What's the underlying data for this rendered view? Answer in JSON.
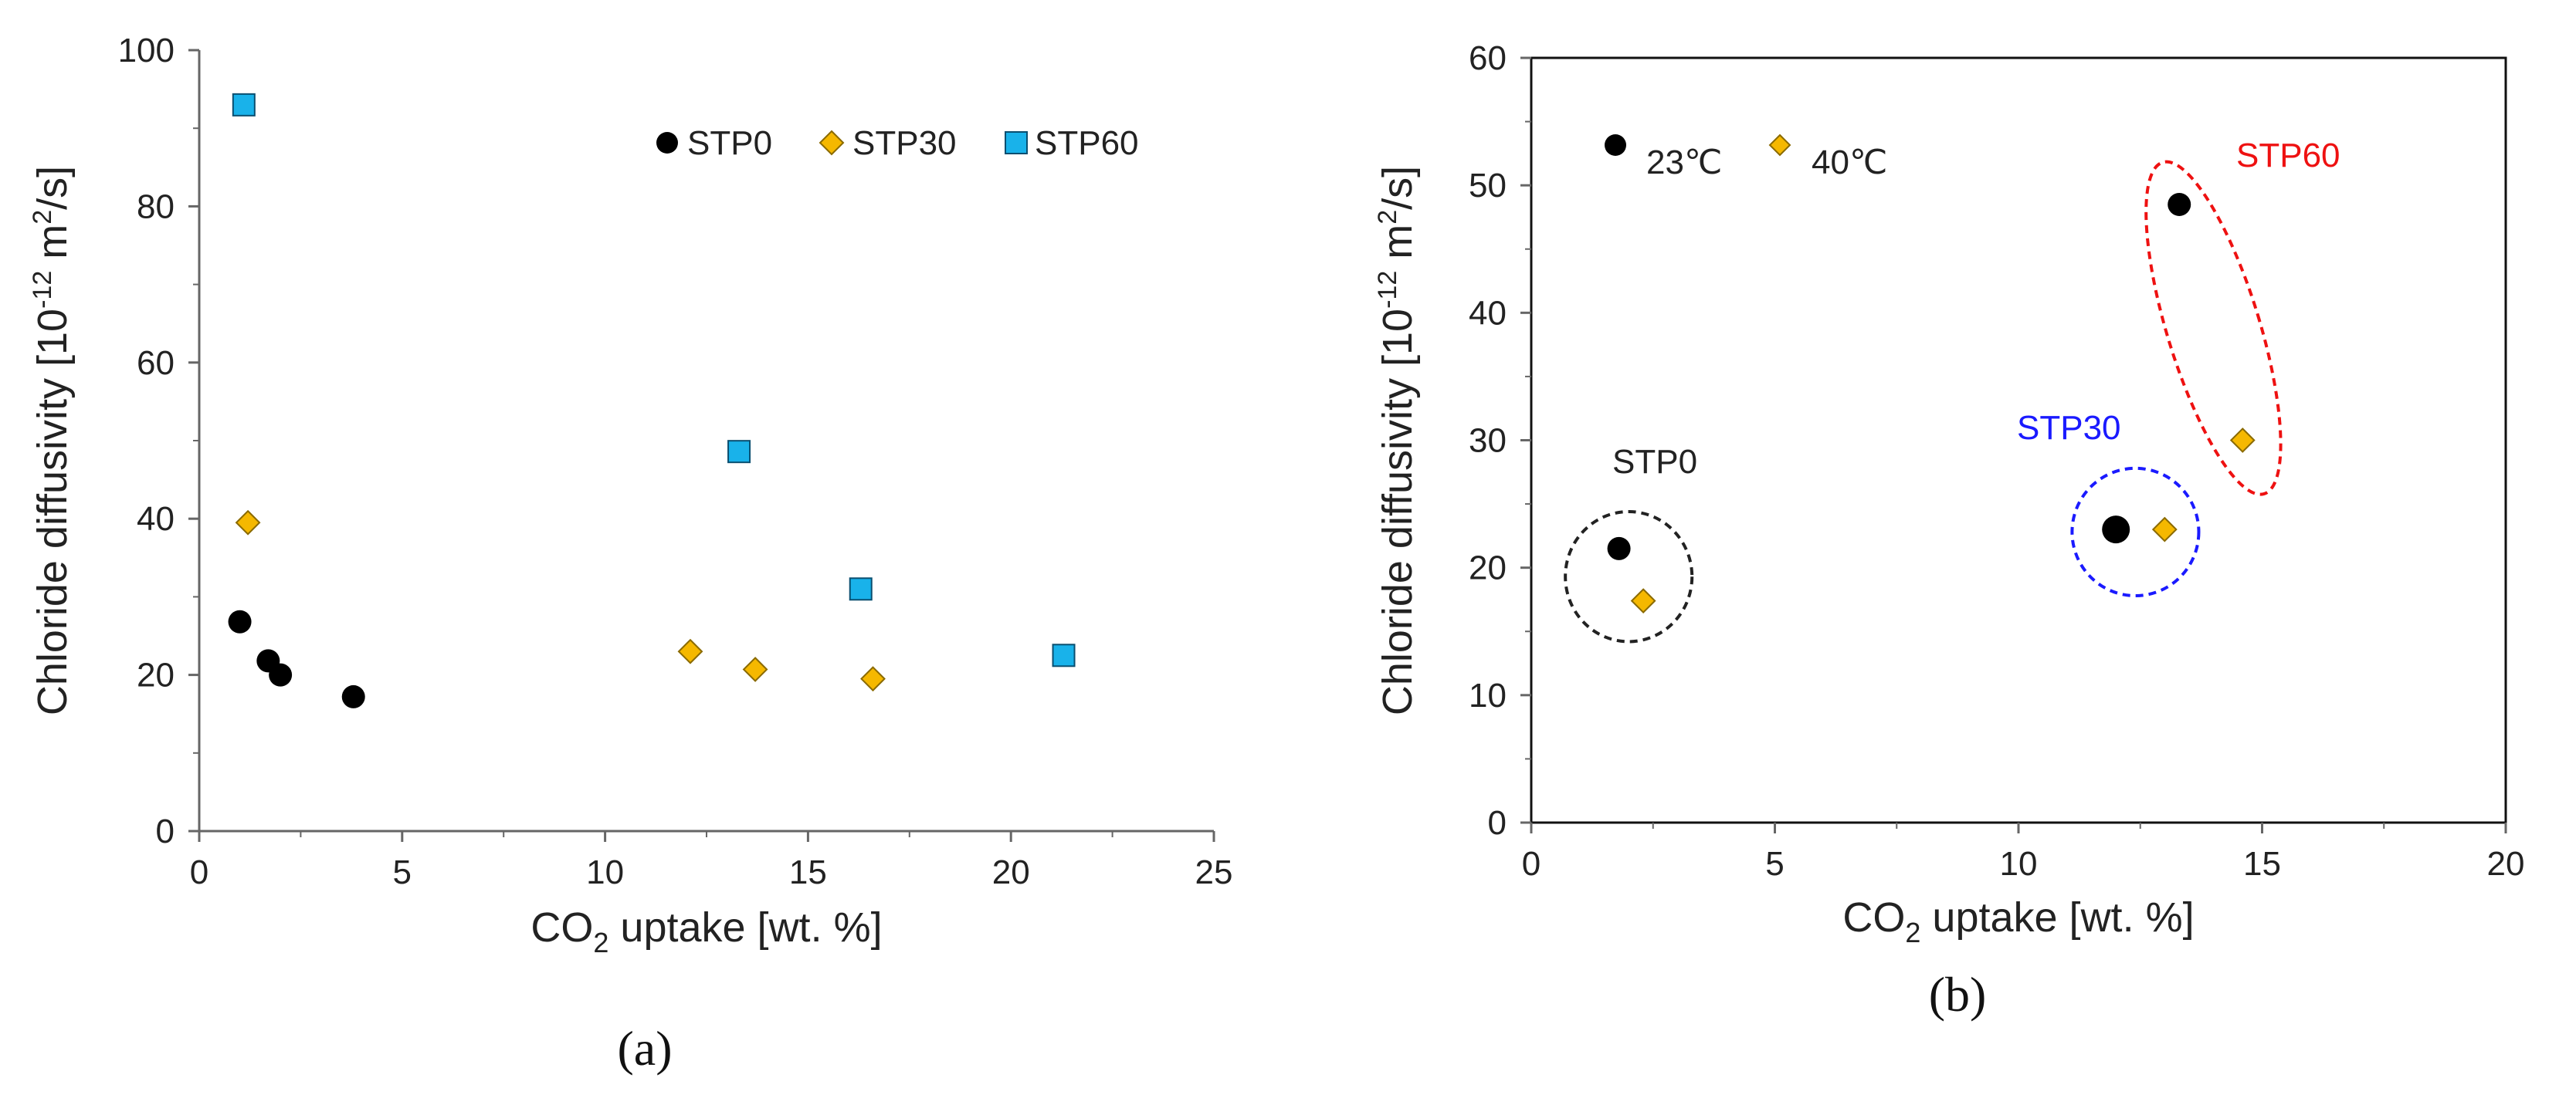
{
  "chart_data": [
    {
      "type": "scatter",
      "panel_label": "(a)",
      "xlabel": {
        "pre": "CO",
        "sub": "2",
        "post": " uptake [wt. %]"
      },
      "ylabel": {
        "pre": "Chloride diffusivity [10",
        "sup1": "-12",
        "mid": " m",
        "sup2": "2",
        "post": "/s]"
      },
      "xlim": [
        0,
        25
      ],
      "ylim": [
        0,
        100
      ],
      "xticks": [
        0,
        5,
        10,
        15,
        20,
        25
      ],
      "yticks": [
        0,
        20,
        40,
        60,
        80,
        100
      ],
      "legend_position": "top-right",
      "series": [
        {
          "name": "STP0",
          "marker": "circle",
          "color": "#000000",
          "points": [
            [
              1.0,
              26.8
            ],
            [
              1.7,
              21.8
            ],
            [
              2.0,
              20.0
            ],
            [
              3.8,
              17.2
            ]
          ]
        },
        {
          "name": "STP30",
          "marker": "diamond",
          "color": "#f5b800",
          "points": [
            [
              1.2,
              39.5
            ],
            [
              12.1,
              23.0
            ],
            [
              13.7,
              20.7
            ],
            [
              16.6,
              19.5
            ]
          ]
        },
        {
          "name": "STP60",
          "marker": "square",
          "color": "#19b2ea",
          "points": [
            [
              1.1,
              93.0
            ],
            [
              13.3,
              48.6
            ],
            [
              16.3,
              31.0
            ],
            [
              21.3,
              22.5
            ]
          ]
        }
      ]
    },
    {
      "type": "scatter",
      "panel_label": "(b)",
      "xlabel": {
        "pre": "CO",
        "sub": "2",
        "post": " uptake [wt. %]"
      },
      "ylabel": {
        "pre": "Chloride diffusivity [10",
        "sup1": "-12",
        "mid": " m",
        "sup2": "2",
        "post": "/s]"
      },
      "xlim": [
        0,
        20
      ],
      "ylim": [
        0,
        60
      ],
      "xticks": [
        0,
        5,
        10,
        15,
        20
      ],
      "yticks": [
        0,
        10,
        20,
        30,
        40,
        50,
        60
      ],
      "legend_position": "top-left",
      "series": [
        {
          "name": "23℃",
          "marker": "circle",
          "color": "#000000",
          "points": [
            [
              1.8,
              21.5
            ],
            [
              12.0,
              23.0
            ],
            [
              13.3,
              48.5
            ]
          ]
        },
        {
          "name": "40℃",
          "marker": "diamond",
          "color": "#f5b800",
          "points": [
            [
              2.3,
              17.4
            ],
            [
              13.0,
              23.0
            ],
            [
              14.6,
              30.0
            ]
          ]
        }
      ],
      "annotations": [
        {
          "text": "STP0",
          "color": "#222222",
          "ellipse": {
            "cx": 2.0,
            "cy": 19.3,
            "rx": 1.3,
            "ry": 5.1,
            "angle": 0
          }
        },
        {
          "text": "STP30",
          "color": "#1a1aff",
          "ellipse": {
            "cx": 12.4,
            "cy": 22.8,
            "rx": 1.3,
            "ry": 5.0,
            "angle": 0
          }
        },
        {
          "text": "STP60",
          "color": "#ee1111",
          "ellipse": {
            "cx": 14.0,
            "cy": 38.8,
            "rx": 0.95,
            "ry": 13.6,
            "angle": -17
          }
        }
      ]
    }
  ]
}
